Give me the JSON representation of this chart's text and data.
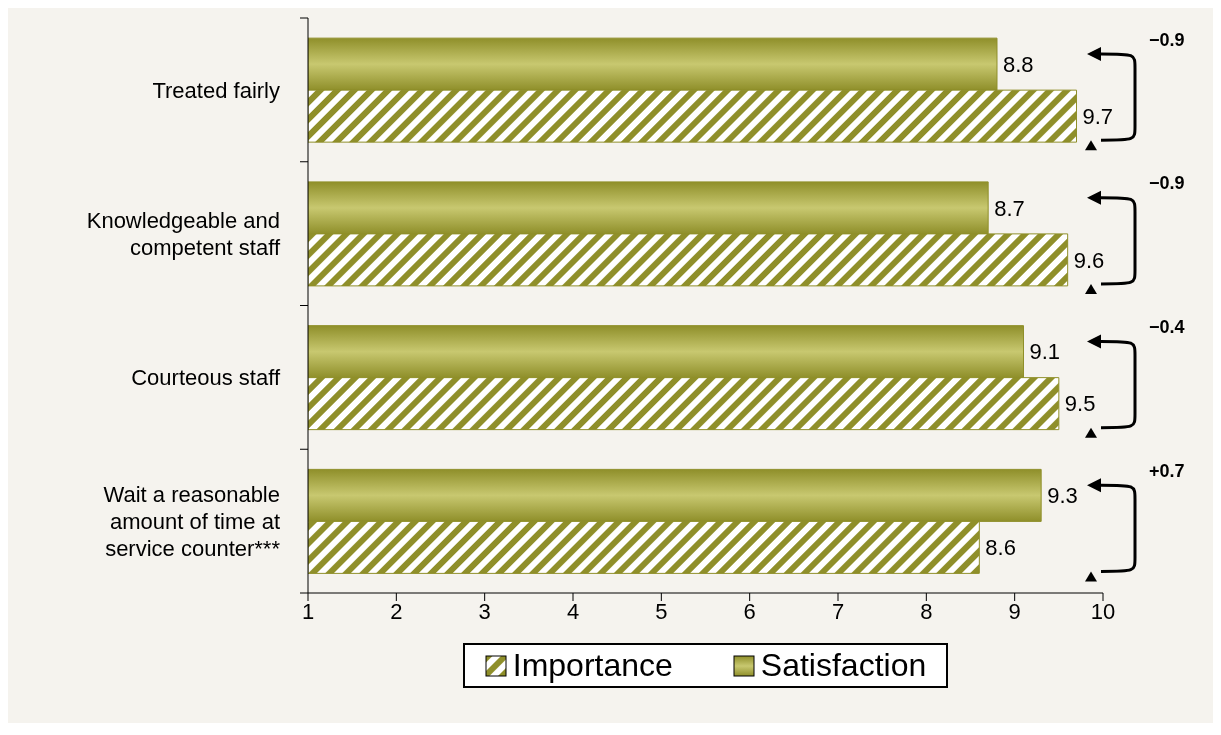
{
  "chart_data": {
    "type": "bar",
    "orientation": "horizontal",
    "categories": [
      "Treated fairly",
      "Knowledgeable and competent staff",
      "Courteous staff",
      "Wait a reasonable amount of time at service counter***"
    ],
    "series": [
      {
        "name": "Satisfaction",
        "color": "#8f8f2a",
        "values": [
          8.8,
          8.7,
          9.1,
          9.3
        ]
      },
      {
        "name": "Importance",
        "color": "#8f8f2a",
        "values": [
          9.7,
          9.6,
          9.5,
          8.6
        ]
      }
    ],
    "xlim": [
      1,
      10
    ],
    "xticks": [
      1,
      2,
      3,
      4,
      5,
      6,
      7,
      8,
      9,
      10
    ],
    "data_labels": true,
    "legend": "bottom",
    "annotations": [
      "−0.9",
      "−0.9",
      "−0.4",
      "+0.7"
    ]
  }
}
